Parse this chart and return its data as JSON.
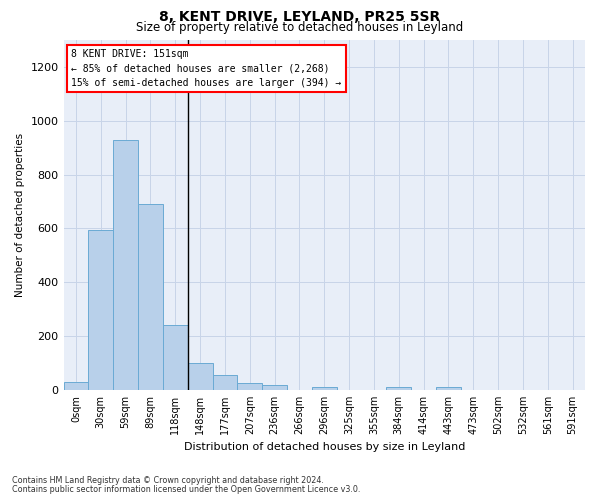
{
  "title": "8, KENT DRIVE, LEYLAND, PR25 5SR",
  "subtitle": "Size of property relative to detached houses in Leyland",
  "xlabel": "Distribution of detached houses by size in Leyland",
  "ylabel": "Number of detached properties",
  "categories": [
    "0sqm",
    "30sqm",
    "59sqm",
    "89sqm",
    "118sqm",
    "148sqm",
    "177sqm",
    "207sqm",
    "236sqm",
    "266sqm",
    "296sqm",
    "325sqm",
    "355sqm",
    "384sqm",
    "414sqm",
    "443sqm",
    "473sqm",
    "502sqm",
    "532sqm",
    "561sqm",
    "591sqm"
  ],
  "values": [
    30,
    595,
    930,
    690,
    240,
    100,
    55,
    25,
    20,
    0,
    10,
    0,
    0,
    10,
    0,
    10,
    0,
    0,
    0,
    0,
    0
  ],
  "bar_color": "#b8d0ea",
  "bar_edge_color": "#6aaad4",
  "ylim": [
    0,
    1300
  ],
  "yticks": [
    0,
    200,
    400,
    600,
    800,
    1000,
    1200
  ],
  "annotation_text": "8 KENT DRIVE: 151sqm\n← 85% of detached houses are smaller (2,268)\n15% of semi-detached houses are larger (394) →",
  "footnote1": "Contains HM Land Registry data © Crown copyright and database right 2024.",
  "footnote2": "Contains public sector information licensed under the Open Government Licence v3.0.",
  "bg_color": "#ffffff",
  "plot_bg_color": "#e8eef8",
  "grid_color": "#c8d4e8",
  "vline_x": 4.5
}
